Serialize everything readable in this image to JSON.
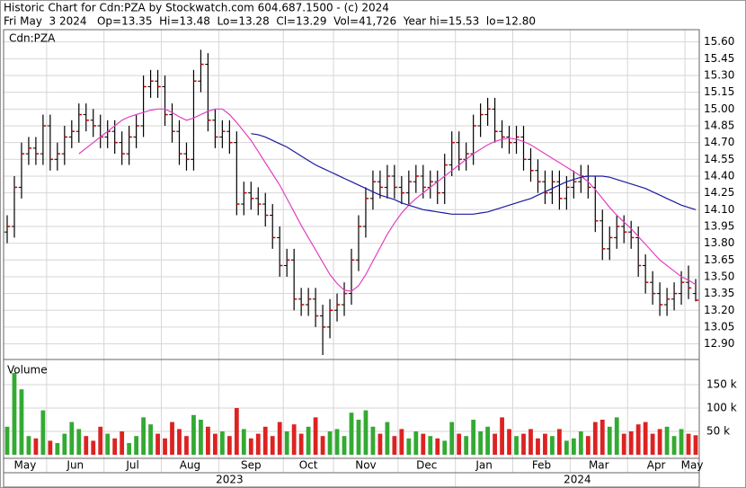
{
  "chart_data": {
    "type": "ohlc",
    "title": "Historic Chart for Cdn:PZA by Stockwatch.com 604.687.1500 - (c) 2024",
    "subtitle": "Fri May  3 2024   Op=13.35  Hi=13.48  Lo=13.28  Cl=13.29  Vol=41,726  Year hi=15.53  lo=12.80",
    "symbol_label": "Cdn:PZA",
    "categories": [
      "May",
      null,
      null,
      null,
      null,
      null,
      "Jun",
      null,
      null,
      null,
      null,
      null,
      null,
      null,
      "Jul",
      null,
      null,
      null,
      null,
      null,
      null,
      null,
      "Aug",
      null,
      null,
      null,
      null,
      null,
      null,
      null,
      "Sep",
      null,
      null,
      null,
      null,
      null,
      null,
      null,
      null,
      "Oct",
      null,
      null,
      null,
      null,
      null,
      null,
      "Nov",
      null,
      null,
      null,
      null,
      null,
      null,
      null,
      null,
      "Dec",
      null,
      null,
      null,
      null,
      null,
      null,
      null,
      "Jan",
      null,
      null,
      null,
      null,
      null,
      null,
      null,
      "Feb",
      null,
      null,
      null,
      null,
      null,
      null,
      null,
      "Mar",
      null,
      null,
      null,
      null,
      null,
      null,
      null,
      "Apr",
      null,
      null,
      null,
      null,
      null,
      null,
      null,
      "May",
      null
    ],
    "years": [
      "2023",
      null,
      null,
      null,
      null,
      null,
      null,
      null,
      null,
      null,
      null,
      null,
      null,
      null,
      null,
      null,
      null,
      null,
      null,
      null,
      null,
      null,
      null,
      null,
      null,
      null,
      null,
      null,
      null,
      null,
      null,
      null,
      null,
      null,
      null,
      null,
      null,
      null,
      null,
      null,
      null,
      null,
      null,
      null,
      null,
      null,
      null,
      null,
      null,
      null,
      null,
      null,
      null,
      null,
      null,
      null,
      null,
      null,
      null,
      null,
      null,
      null,
      null,
      "2024",
      null,
      null,
      null,
      null,
      null,
      null,
      null,
      null,
      null,
      null,
      null,
      null,
      null,
      null,
      null,
      null,
      null,
      null,
      null,
      null,
      null,
      null,
      null,
      null,
      null,
      null,
      null,
      null,
      null,
      null,
      null,
      null,
      null,
      null
    ],
    "open": [
      13.9,
      13.95,
      14.3,
      14.6,
      14.65,
      14.6,
      14.85,
      14.55,
      14.6,
      14.75,
      14.8,
      14.95,
      14.9,
      14.85,
      14.75,
      14.8,
      14.7,
      14.6,
      14.75,
      14.85,
      15.2,
      15.25,
      15.2,
      14.95,
      14.8,
      14.6,
      14.55,
      15.25,
      15.4,
      14.9,
      14.75,
      14.8,
      14.7,
      14.15,
      14.25,
      14.2,
      14.15,
      14.05,
      13.85,
      13.6,
      13.65,
      13.3,
      13.25,
      13.3,
      13.15,
      13.05,
      13.2,
      13.25,
      13.35,
      13.65,
      13.95,
      14.2,
      14.35,
      14.3,
      14.4,
      14.3,
      14.25,
      14.35,
      14.4,
      14.3,
      14.35,
      14.25,
      14.5,
      14.7,
      14.55,
      14.6,
      14.85,
      14.95,
      15.0,
      14.8,
      14.75,
      14.7,
      14.75,
      14.55,
      14.45,
      14.35,
      14.25,
      14.35,
      14.2,
      14.3,
      14.35,
      14.4,
      14.3,
      14.0,
      13.75,
      13.85,
      13.95,
      13.9,
      13.85,
      13.6,
      13.45,
      13.35,
      13.25,
      13.3,
      13.35,
      13.45,
      13.35
    ],
    "high": [
      14.05,
      14.4,
      14.7,
      14.75,
      14.75,
      14.95,
      14.95,
      14.7,
      14.85,
      14.9,
      15.05,
      15.05,
      15.0,
      14.95,
      14.9,
      14.9,
      14.8,
      14.85,
      14.95,
      15.3,
      15.35,
      15.35,
      15.3,
      15.05,
      14.9,
      14.7,
      15.35,
      15.53,
      15.5,
      15.0,
      14.9,
      14.9,
      14.8,
      14.35,
      14.35,
      14.3,
      14.25,
      14.15,
      13.95,
      13.75,
      13.75,
      13.4,
      13.4,
      13.4,
      13.25,
      13.3,
      13.35,
      13.45,
      13.75,
      14.05,
      14.3,
      14.45,
      14.45,
      14.5,
      14.5,
      14.4,
      14.45,
      14.5,
      14.5,
      14.45,
      14.45,
      14.6,
      14.8,
      14.8,
      14.7,
      14.95,
      15.05,
      15.1,
      15.1,
      14.9,
      14.85,
      14.85,
      14.85,
      14.65,
      14.55,
      14.45,
      14.45,
      14.45,
      14.4,
      14.45,
      14.5,
      14.5,
      14.4,
      14.1,
      13.95,
      14.05,
      14.05,
      14.0,
      13.95,
      13.7,
      13.55,
      13.45,
      13.4,
      13.45,
      13.55,
      13.6,
      13.48
    ],
    "low": [
      13.8,
      13.85,
      14.2,
      14.5,
      14.5,
      14.5,
      14.45,
      14.45,
      14.5,
      14.65,
      14.7,
      14.8,
      14.75,
      14.65,
      14.65,
      14.6,
      14.5,
      14.5,
      14.65,
      14.75,
      15.1,
      15.1,
      14.85,
      14.7,
      14.5,
      14.45,
      14.45,
      15.15,
      14.8,
      14.65,
      14.65,
      14.6,
      14.05,
      14.05,
      14.1,
      14.05,
      13.95,
      13.75,
      13.5,
      13.5,
      13.2,
      13.15,
      13.15,
      13.05,
      12.8,
      12.95,
      13.1,
      13.15,
      13.25,
      13.55,
      13.85,
      14.1,
      14.2,
      14.2,
      14.2,
      14.15,
      14.15,
      14.25,
      14.2,
      14.2,
      14.15,
      14.15,
      14.4,
      14.45,
      14.45,
      14.5,
      14.75,
      14.85,
      14.7,
      14.65,
      14.6,
      14.6,
      14.45,
      14.35,
      14.25,
      14.15,
      14.15,
      14.1,
      14.1,
      14.2,
      14.25,
      14.2,
      13.9,
      13.65,
      13.65,
      13.75,
      13.8,
      13.75,
      13.5,
      13.35,
      13.25,
      13.15,
      13.15,
      13.2,
      13.25,
      13.3,
      13.28
    ],
    "close": [
      13.95,
      14.3,
      14.6,
      14.65,
      14.6,
      14.85,
      14.55,
      14.6,
      14.75,
      14.8,
      14.95,
      14.9,
      14.85,
      14.75,
      14.8,
      14.7,
      14.6,
      14.75,
      14.85,
      15.2,
      15.25,
      15.2,
      14.95,
      14.8,
      14.6,
      14.55,
      15.25,
      15.4,
      14.9,
      14.75,
      14.8,
      14.7,
      14.15,
      14.25,
      14.2,
      14.15,
      14.05,
      13.85,
      13.6,
      13.65,
      13.3,
      13.25,
      13.3,
      13.15,
      13.05,
      13.2,
      13.25,
      13.35,
      13.65,
      13.95,
      14.2,
      14.35,
      14.3,
      14.4,
      14.3,
      14.25,
      14.35,
      14.4,
      14.3,
      14.35,
      14.25,
      14.5,
      14.7,
      14.55,
      14.6,
      14.85,
      14.95,
      15.0,
      14.8,
      14.75,
      14.7,
      14.75,
      14.55,
      14.45,
      14.35,
      14.25,
      14.35,
      14.2,
      14.3,
      14.35,
      14.4,
      14.3,
      14.0,
      13.75,
      13.85,
      13.95,
      13.9,
      13.85,
      13.6,
      13.45,
      13.35,
      13.25,
      13.3,
      13.35,
      13.45,
      13.4,
      13.29
    ],
    "bar_color": "#000000",
    "close_color": "#cc0000",
    "overlays": [
      {
        "color": "#e040c0",
        "values": [
          null,
          null,
          null,
          null,
          null,
          null,
          null,
          null,
          null,
          null,
          14.6,
          14.65,
          14.7,
          14.75,
          14.8,
          14.85,
          14.9,
          14.93,
          14.95,
          14.97,
          14.99,
          15.0,
          15.0,
          14.97,
          14.93,
          14.9,
          14.92,
          14.95,
          14.98,
          15.0,
          15.0,
          14.95,
          14.88,
          14.8,
          14.72,
          14.62,
          14.52,
          14.42,
          14.32,
          14.2,
          14.08,
          13.96,
          13.85,
          13.74,
          13.63,
          13.52,
          13.44,
          13.38,
          13.37,
          13.42,
          13.52,
          13.64,
          13.76,
          13.88,
          13.98,
          14.07,
          14.14,
          14.2,
          14.25,
          14.3,
          14.35,
          14.4,
          14.45,
          14.5,
          14.55,
          14.6,
          14.64,
          14.68,
          14.71,
          14.73,
          14.74,
          14.73,
          14.71,
          14.68,
          14.64,
          14.6,
          14.56,
          14.52,
          14.48,
          14.44,
          14.4,
          14.35,
          14.28,
          14.2,
          14.12,
          14.05,
          13.99,
          13.93,
          13.86,
          13.79,
          13.72,
          13.65,
          13.6,
          13.55,
          13.5,
          13.47,
          13.43
        ]
      },
      {
        "color": "#1a1aa0",
        "values": [
          null,
          null,
          null,
          null,
          null,
          null,
          null,
          null,
          null,
          null,
          null,
          null,
          null,
          null,
          null,
          null,
          null,
          null,
          null,
          null,
          null,
          null,
          null,
          null,
          null,
          null,
          null,
          null,
          null,
          null,
          null,
          null,
          null,
          null,
          14.78,
          14.77,
          14.75,
          14.72,
          14.69,
          14.66,
          14.62,
          14.58,
          14.54,
          14.5,
          14.47,
          14.44,
          14.41,
          14.38,
          14.35,
          14.32,
          14.29,
          14.26,
          14.23,
          14.21,
          14.19,
          14.16,
          14.14,
          14.12,
          14.1,
          14.09,
          14.08,
          14.07,
          14.06,
          14.06,
          14.06,
          14.06,
          14.07,
          14.08,
          14.1,
          14.12,
          14.14,
          14.16,
          14.18,
          14.2,
          14.23,
          14.26,
          14.29,
          14.32,
          14.35,
          14.37,
          14.39,
          14.4,
          14.4,
          14.4,
          14.39,
          14.37,
          14.35,
          14.33,
          14.31,
          14.29,
          14.26,
          14.23,
          14.2,
          14.17,
          14.14,
          14.12,
          14.1
        ]
      }
    ],
    "ylim": [
      12.76,
      15.71
    ],
    "yticks": [
      {
        "value": 12.9,
        "label": "12.90"
      },
      13.05,
      {
        "value": 13.2,
        "label": "13.20"
      },
      13.35,
      {
        "value": 13.5,
        "label": "13.50"
      },
      13.65,
      {
        "value": 13.8,
        "label": "13.80"
      },
      13.95,
      {
        "value": 14.1,
        "label": "14.10"
      },
      14.25,
      {
        "value": 14.4,
        "label": "14.40"
      },
      14.55,
      {
        "value": 14.7,
        "label": "14.70"
      },
      14.85,
      {
        "value": 15.0,
        "label": "15.00"
      },
      15.15,
      {
        "value": 15.3,
        "label": "15.30"
      },
      15.45,
      {
        "value": 15.6,
        "label": "15.60"
      }
    ],
    "grid": true,
    "volume": {
      "label": "Volume",
      "values": [
        60000,
        175000,
        140000,
        40000,
        35000,
        95000,
        30000,
        25000,
        45000,
        70000,
        55000,
        40000,
        30000,
        60000,
        45000,
        35000,
        50000,
        25000,
        40000,
        80000,
        65000,
        45000,
        35000,
        70000,
        55000,
        40000,
        85000,
        75000,
        60000,
        45000,
        50000,
        40000,
        100000,
        55000,
        35000,
        45000,
        60000,
        40000,
        70000,
        50000,
        65000,
        45000,
        60000,
        80000,
        40000,
        50000,
        55000,
        40000,
        90000,
        75000,
        95000,
        60000,
        45000,
        70000,
        40000,
        55000,
        35000,
        50000,
        45000,
        40000,
        35000,
        30000,
        70000,
        45000,
        40000,
        75000,
        50000,
        60000,
        45000,
        80000,
        55000,
        40000,
        45000,
        55000,
        35000,
        45000,
        40000,
        55000,
        30000,
        35000,
        50000,
        40000,
        70000,
        75000,
        60000,
        80000,
        45000,
        50000,
        65000,
        70000,
        45000,
        55000,
        60000,
        40000,
        55000,
        45000,
        41726
      ],
      "ylim": [
        0,
        200000
      ],
      "yticks": [
        {
          "value": 50000,
          "label": "50 k"
        },
        {
          "value": 100000,
          "label": "100 k"
        },
        {
          "value": 150000,
          "label": "150 k"
        }
      ],
      "up_color": "#33aa33",
      "down_color": "#dd2222"
    }
  }
}
